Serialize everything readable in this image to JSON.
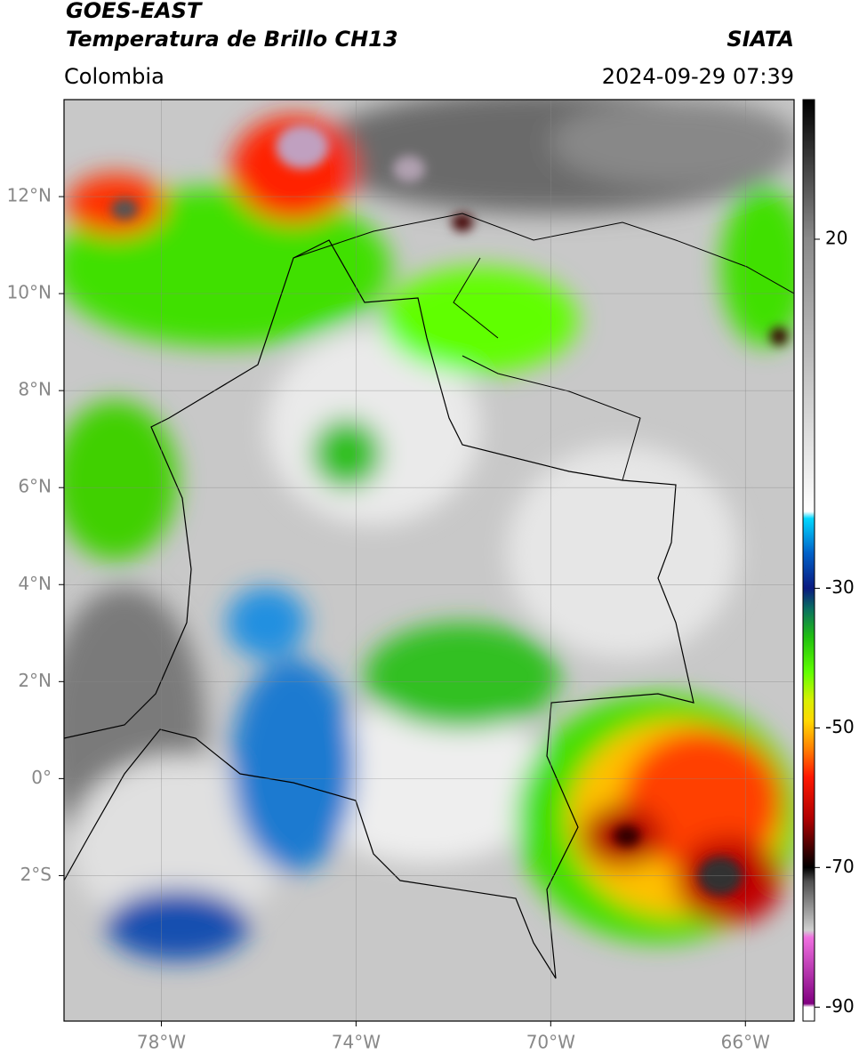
{
  "chart_data": {
    "type": "map",
    "title": "GOES-EAST",
    "subtitle": "Temperatura de Brillo CH13",
    "source": "SIATA",
    "region": "Colombia",
    "datetime": "2024-09-29 07:39",
    "xlim": [
      -80,
      -65
    ],
    "ylim": [
      -5,
      14
    ],
    "xticks": [
      {
        "value": -78,
        "label": "78°W"
      },
      {
        "value": -74,
        "label": "74°W"
      },
      {
        "value": -70,
        "label": "70°W"
      },
      {
        "value": -66,
        "label": "66°W"
      }
    ],
    "yticks": [
      {
        "value": 12,
        "label": "12°N"
      },
      {
        "value": 10,
        "label": "10°N"
      },
      {
        "value": 8,
        "label": "8°N"
      },
      {
        "value": 6,
        "label": "6°N"
      },
      {
        "value": 4,
        "label": "4°N"
      },
      {
        "value": 2,
        "label": "2°N"
      },
      {
        "value": 0,
        "label": "0°"
      },
      {
        "value": -2,
        "label": "2°S"
      }
    ],
    "grid": true,
    "colorbar": {
      "lim": [
        -92,
        40
      ],
      "ticks": [
        20,
        -30,
        -50,
        -70,
        -90
      ],
      "colormap": [
        {
          "value": 40,
          "color": "#000000"
        },
        {
          "value": 20,
          "color": "#8a8a8a"
        },
        {
          "value": -19,
          "color": "#ffffff"
        },
        {
          "value": -20,
          "color": "#00d8ff"
        },
        {
          "value": -25,
          "color": "#0060c8"
        },
        {
          "value": -30,
          "color": "#0a1a80"
        },
        {
          "value": -33,
          "color": "#0a7060"
        },
        {
          "value": -37,
          "color": "#20c010"
        },
        {
          "value": -42,
          "color": "#60ff00"
        },
        {
          "value": -46,
          "color": "#d8f000"
        },
        {
          "value": -49,
          "color": "#ffd800"
        },
        {
          "value": -53,
          "color": "#ff8000"
        },
        {
          "value": -57,
          "color": "#ff1800"
        },
        {
          "value": -63,
          "color": "#b00000"
        },
        {
          "value": -68,
          "color": "#300000"
        },
        {
          "value": -70,
          "color": "#000000"
        },
        {
          "value": -72,
          "color": "#505050"
        },
        {
          "value": -79,
          "color": "#d0d0d0"
        },
        {
          "value": -80,
          "color": "#f070e0"
        },
        {
          "value": -89.5,
          "color": "#800080"
        },
        {
          "value": -90,
          "color": "#ffffff"
        },
        {
          "value": -92,
          "color": "#ffffff"
        }
      ]
    }
  }
}
